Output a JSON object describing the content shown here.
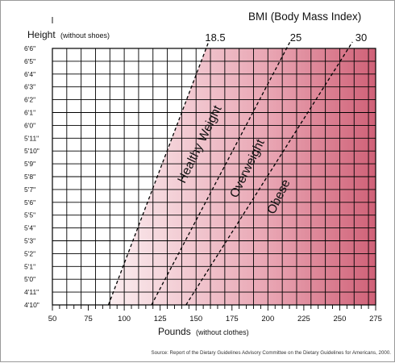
{
  "chart_data": {
    "type": "line",
    "title": "BMI (Body Mass Index)",
    "ylabel": {
      "main": "Height",
      "sub": "(without shoes)"
    },
    "xlabel": {
      "main": "Pounds",
      "sub": "(without clothes)"
    },
    "x_range": [
      50,
      275
    ],
    "x_ticks": [
      50,
      75,
      100,
      125,
      150,
      175,
      200,
      225,
      250,
      275
    ],
    "x_minor_step": 5,
    "x_gridline_step": 10,
    "y_range_inches": [
      58,
      78
    ],
    "y_ticks": [
      "4'10\"",
      "4'11\"",
      "5'0\"",
      "5'1\"",
      "5'2\"",
      "5'3\"",
      "5'4\"",
      "5'5\"",
      "5'6\"",
      "5'7\"",
      "5'8\"",
      "5'9\"",
      "5'10\"",
      "5'11\"",
      "6'0\"",
      "6'1\"",
      "6'2\"",
      "6'3\"",
      "6'4\"",
      "6'5\"",
      "6'6\""
    ],
    "grid": true,
    "series": [
      {
        "name": "18.5",
        "style": "dashed",
        "points": [
          [
            89,
            58
          ],
          [
            157,
            78
          ]
        ]
      },
      {
        "name": "25",
        "style": "dashed",
        "points": [
          [
            119,
            58
          ],
          [
            213,
            78
          ]
        ]
      },
      {
        "name": "30",
        "style": "dashed",
        "points": [
          [
            143,
            58
          ],
          [
            256,
            78
          ]
        ]
      }
    ],
    "region_labels": [
      "Healthy Weight",
      "Overweight",
      "Obese"
    ],
    "shade_colors": {
      "light": "#fbeef0",
      "mid": "#e8a3b1",
      "dark": "#c84c65"
    },
    "source": "Source: Report of the Dietary Guidelines Advisory Committee on the Dietary Guidelines for Americans, 2000."
  }
}
